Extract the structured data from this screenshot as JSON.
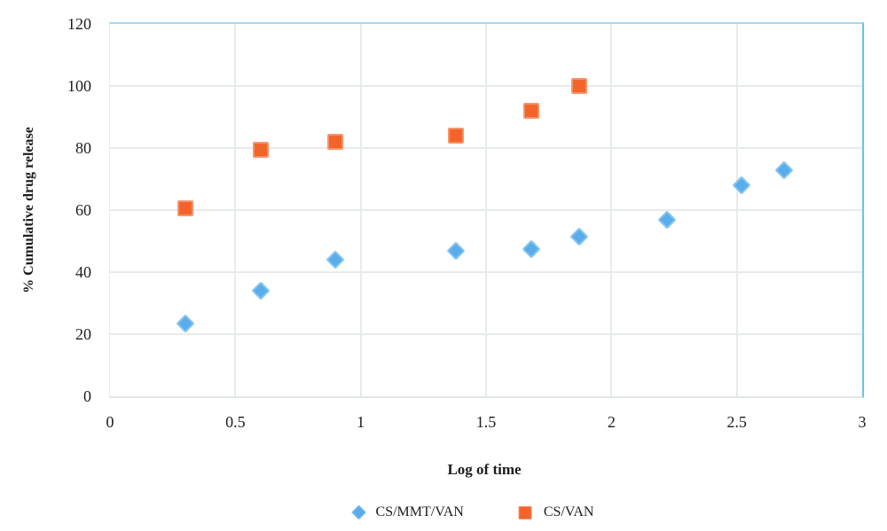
{
  "chart_data": {
    "type": "scatter",
    "title": "",
    "xlabel": "Log of time",
    "ylabel": "% Cumulative drug release",
    "xlim": [
      0,
      3
    ],
    "ylim": [
      0,
      120
    ],
    "x_ticks": [
      "0",
      "0.5",
      "1",
      "1.5",
      "2",
      "2.5",
      "3"
    ],
    "y_ticks": [
      "0",
      "20",
      "40",
      "60",
      "80",
      "100",
      "120"
    ],
    "grid": true,
    "legend_position": "bottom-center",
    "series": [
      {
        "name": "CS/MMT/VAN",
        "marker": "diamond",
        "color": "#58adea",
        "border_color": "#88c5f0",
        "points": [
          [
            0.3,
            23.5
          ],
          [
            0.6,
            34
          ],
          [
            0.9,
            44
          ],
          [
            1.38,
            47
          ],
          [
            1.68,
            47.5
          ],
          [
            1.87,
            51.5
          ],
          [
            2.22,
            57
          ],
          [
            2.52,
            68
          ],
          [
            2.69,
            73
          ]
        ]
      },
      {
        "name": "CS/VAN",
        "marker": "square",
        "color": "#f2642a",
        "border_color": "#f5946a",
        "points": [
          [
            0.3,
            60.5
          ],
          [
            0.6,
            79.5
          ],
          [
            0.9,
            82
          ],
          [
            1.38,
            84
          ],
          [
            1.68,
            92
          ],
          [
            1.87,
            100
          ]
        ]
      }
    ],
    "colors": {
      "gridline": "#e7ebeb",
      "plot_border_top": "#a6daee",
      "plot_border_right": "#68c3ea",
      "plot_border_bottom": "#e1e7e7",
      "plot_border_left": "#e9ecec",
      "text": "#1c1c1c"
    }
  }
}
